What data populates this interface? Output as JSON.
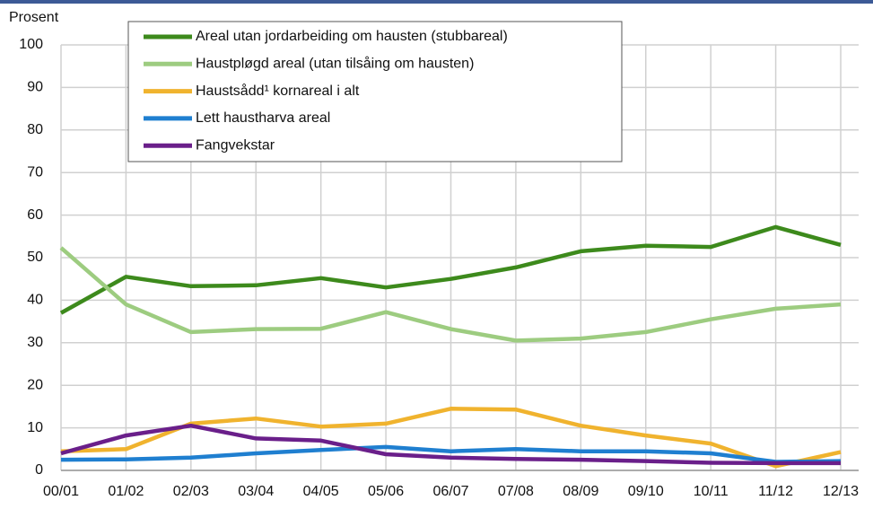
{
  "chart_data": {
    "type": "line",
    "y_label": "Prosent",
    "categories": [
      "00/01",
      "01/02",
      "02/03",
      "03/04",
      "04/05",
      "05/06",
      "06/07",
      "07/08",
      "08/09",
      "09/10",
      "10/11",
      "11/12",
      "12/13"
    ],
    "ylim": [
      0,
      100
    ],
    "yticks": [
      0,
      10,
      20,
      30,
      40,
      50,
      60,
      70,
      80,
      90,
      100
    ],
    "grid": true,
    "series": [
      {
        "name": "Areal utan jordarbeiding om hausten (stubbareal)",
        "color": "#3d8a1c",
        "values": [
          37,
          45.5,
          43.3,
          43.5,
          45.2,
          43,
          45,
          47.7,
          51.5,
          52.8,
          52.5,
          57.2,
          53
        ]
      },
      {
        "name": "Haustpløgd areal (utan tilsåing om hausten)",
        "color": "#9dcc80",
        "values": [
          52.3,
          39,
          32.5,
          33.2,
          33.3,
          37.2,
          33.2,
          30.5,
          31,
          32.5,
          35.5,
          38,
          39
        ]
      },
      {
        "name": "Haustsådd¹ kornareal i alt",
        "color": "#f0b32e",
        "values": [
          4.5,
          5,
          11,
          12.2,
          10.3,
          11,
          14.5,
          14.3,
          10.5,
          8.2,
          6.3,
          1,
          4.3
        ]
      },
      {
        "name": "Lett haustharva areal",
        "color": "#1f7fd0",
        "values": [
          2.5,
          2.6,
          3,
          4,
          4.8,
          5.5,
          4.5,
          5,
          4.5,
          4.5,
          4,
          2,
          2.2
        ]
      },
      {
        "name": "Fangvekstar",
        "color": "#6a1f8a",
        "values": [
          4,
          8.2,
          10.5,
          7.5,
          7,
          3.8,
          3,
          2.7,
          2.5,
          2.2,
          1.8,
          1.7,
          1.7
        ]
      }
    ]
  }
}
